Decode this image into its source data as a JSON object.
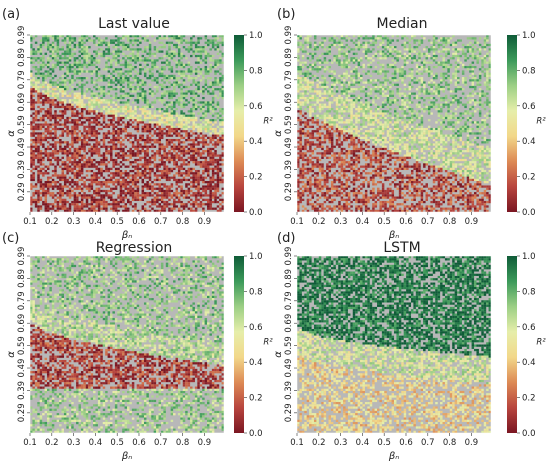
{
  "colors": {
    "mask": "#b8b8b8",
    "colormap": [
      "#7a1622",
      "#b8453e",
      "#dd8a55",
      "#f2d88a",
      "#e6eeaa",
      "#9ccf85",
      "#3c9a5a",
      "#0f5c38"
    ]
  },
  "chart_data": [
    {
      "type": "heatmap",
      "panel_label": "(a)",
      "title": "Last value",
      "xlabel": "βₙ",
      "ylabel": "α",
      "x_ticks": [
        "0.1",
        "0.2",
        "0.3",
        "0.4",
        "0.5",
        "0.6",
        "0.7",
        "0.8",
        "0.9"
      ],
      "y_ticks": [
        "0.99",
        "0.89",
        "0.79",
        "0.69",
        "0.59",
        "0.49",
        "0.39",
        "0.29"
      ],
      "x_range": [
        0.1,
        0.99
      ],
      "y_range": [
        0.2,
        0.99
      ],
      "colorbar": {
        "label": "R²",
        "ticks": [
          "1.0",
          "0.8",
          "0.6",
          "0.4",
          "0.2",
          "0.0"
        ],
        "range": [
          0.0,
          1.0
        ]
      },
      "pattern": {
        "boundary_alpha_at_beta_min": 0.8,
        "boundary_alpha_at_beta_max": 0.57,
        "boundary_curvature": 0.6,
        "boundary_width": 0.03,
        "r2_above": 0.78,
        "r2_below": 0.1,
        "r2_boundary": 0.55,
        "gray_fraction_above": 0.45,
        "gray_fraction_below": 0.35
      }
    },
    {
      "type": "heatmap",
      "panel_label": "(b)",
      "title": "Median",
      "xlabel": "βₙ",
      "ylabel": "α",
      "x_ticks": [
        "0.1",
        "0.2",
        "0.3",
        "0.4",
        "0.5",
        "0.6",
        "0.7",
        "0.8",
        "0.9"
      ],
      "y_ticks": [
        "0.99",
        "0.89",
        "0.79",
        "0.69",
        "0.59",
        "0.49",
        "0.39",
        "0.29"
      ],
      "x_range": [
        0.1,
        0.99
      ],
      "y_range": [
        0.2,
        0.99
      ],
      "colorbar": {
        "label": "R²",
        "ticks": [
          "1.0",
          "0.8",
          "0.6",
          "0.4",
          "0.2",
          "0.0"
        ],
        "range": [
          0.0,
          1.0
        ]
      },
      "pattern": {
        "boundary_alpha_at_beta_min": 0.75,
        "boundary_alpha_at_beta_max": 0.4,
        "boundary_curvature": 0.8,
        "boundary_width": 0.08,
        "r2_above": 0.72,
        "r2_below": 0.15,
        "r2_boundary": 0.6,
        "gray_fraction_above": 0.5,
        "gray_fraction_below": 0.4
      }
    },
    {
      "type": "heatmap",
      "panel_label": "(c)",
      "title": "Regression",
      "xlabel": "βₙ",
      "ylabel": "α",
      "x_ticks": [
        "0.1",
        "0.2",
        "0.3",
        "0.4",
        "0.5",
        "0.6",
        "0.7",
        "0.8",
        "0.9"
      ],
      "y_ticks": [
        "0.99",
        "0.89",
        "0.79",
        "0.69",
        "0.59",
        "0.49",
        "0.39",
        "0.29"
      ],
      "x_range": [
        0.1,
        0.99
      ],
      "y_range": [
        0.2,
        0.99
      ],
      "colorbar": {
        "label": "R²",
        "ticks": [
          "1.0",
          "0.8",
          "0.6",
          "0.4",
          "0.2",
          "0.0"
        ],
        "range": [
          0.0,
          1.0
        ]
      },
      "pattern": {
        "boundary_alpha_at_beta_min": 0.75,
        "boundary_alpha_at_beta_max": 0.55,
        "boundary_curvature": 0.6,
        "boundary_width": 0.05,
        "band_low_alpha": 0.4,
        "r2_above": 0.72,
        "r2_below": 0.12,
        "r2_boundary": 0.65,
        "r2_bottom": 0.7,
        "gray_fraction_above": 0.5,
        "gray_fraction_below": 0.35
      }
    },
    {
      "type": "heatmap",
      "panel_label": "(d)",
      "title": "LSTM",
      "xlabel": "βₙ",
      "ylabel": "α",
      "x_ticks": [
        "0.1",
        "0.2",
        "0.3",
        "0.4",
        "0.5",
        "0.6",
        "0.7",
        "0.8",
        "0.9"
      ],
      "y_ticks": [
        "0.99",
        "0.89",
        "0.79",
        "0.69",
        "0.59",
        "0.49",
        "0.39",
        "0.29"
      ],
      "x_range": [
        0.1,
        0.99
      ],
      "y_range": [
        0.2,
        0.99
      ],
      "colorbar": {
        "label": "R²",
        "ticks": [
          "1.0",
          "0.8",
          "0.6",
          "0.4",
          "0.2",
          "0.0"
        ],
        "range": [
          0.0,
          1.0
        ]
      },
      "pattern": {
        "boundary_alpha_at_beta_min": 0.62,
        "boundary_alpha_at_beta_max": 0.48,
        "boundary_curvature": 0.5,
        "boundary_width": 0.06,
        "r2_above": 0.95,
        "r2_below": 0.45,
        "r2_boundary": 0.6,
        "gray_fraction_above": 0.3,
        "gray_fraction_below": 0.45
      }
    }
  ]
}
